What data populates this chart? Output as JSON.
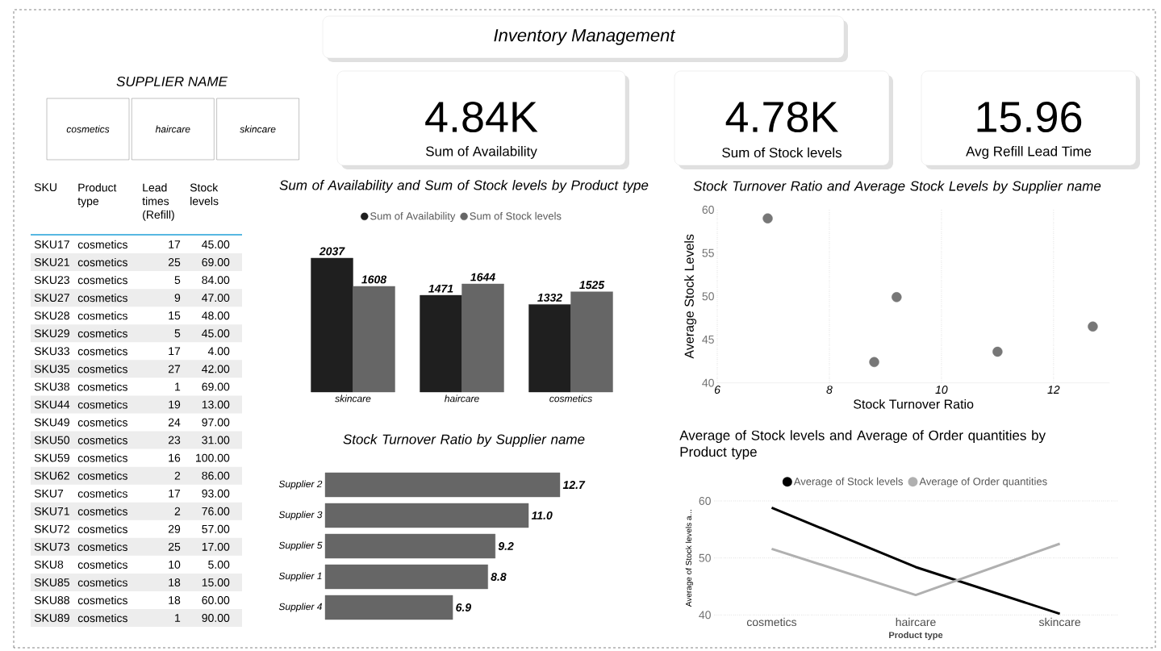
{
  "chart_data": [
    {
      "type": "other",
      "title": "Inventory Management"
    },
    {
      "type": "other",
      "title": "SUPPLIER NAME",
      "categories": [
        "cosmetics",
        "haircare",
        "skincare"
      ]
    },
    {
      "type": "other",
      "categories": [
        "Sum of Availability",
        "Sum of Stock levels",
        "Avg Refill Lead Time"
      ],
      "value_labels": [
        "4.84K",
        "4.78K",
        "15.96"
      ]
    },
    {
      "type": "other",
      "categories": [
        "SKU",
        "Product type",
        "Lead times (Refill)",
        "Stock levels"
      ],
      "cell_labels": [
        [
          "SKU17",
          "cosmetics",
          "17",
          "45.00"
        ],
        [
          "SKU21",
          "cosmetics",
          "25",
          "69.00"
        ],
        [
          "SKU23",
          "cosmetics",
          "5",
          "84.00"
        ],
        [
          "SKU27",
          "cosmetics",
          "9",
          "47.00"
        ],
        [
          "SKU28",
          "cosmetics",
          "15",
          "48.00"
        ],
        [
          "SKU29",
          "cosmetics",
          "5",
          "45.00"
        ],
        [
          "SKU33",
          "cosmetics",
          "17",
          "4.00"
        ],
        [
          "SKU35",
          "cosmetics",
          "27",
          "42.00"
        ],
        [
          "SKU38",
          "cosmetics",
          "1",
          "69.00"
        ],
        [
          "SKU44",
          "cosmetics",
          "19",
          "13.00"
        ],
        [
          "SKU49",
          "cosmetics",
          "24",
          "97.00"
        ],
        [
          "SKU50",
          "cosmetics",
          "23",
          "31.00"
        ],
        [
          "SKU59",
          "cosmetics",
          "16",
          "100.00"
        ],
        [
          "SKU62",
          "cosmetics",
          "2",
          "86.00"
        ],
        [
          "SKU7",
          "cosmetics",
          "17",
          "93.00"
        ],
        [
          "SKU71",
          "cosmetics",
          "2",
          "76.00"
        ],
        [
          "SKU72",
          "cosmetics",
          "29",
          "57.00"
        ],
        [
          "SKU73",
          "cosmetics",
          "25",
          "17.00"
        ],
        [
          "SKU8",
          "cosmetics",
          "10",
          "5.00"
        ],
        [
          "SKU85",
          "cosmetics",
          "18",
          "15.00"
        ],
        [
          "SKU88",
          "cosmetics",
          "18",
          "60.00"
        ],
        [
          "SKU89",
          "cosmetics",
          "1",
          "90.00"
        ]
      ]
    },
    {
      "type": "bar",
      "title": "Sum of Availability and Sum of Stock levels by Product type",
      "categories": [
        "skincare",
        "haircare",
        "cosmetics"
      ],
      "series": [
        {
          "name": "Sum of Availability",
          "color": "#1f1f1f",
          "values": [
            2037,
            1471,
            1332
          ]
        },
        {
          "name": "Sum of Stock levels",
          "color": "#666666",
          "values": [
            1608,
            1644,
            1525
          ]
        }
      ],
      "data_labels": true,
      "legend": "top"
    },
    {
      "type": "scatter",
      "title": "Stock Turnover Ratio and Average Stock Levels by Supplier name",
      "xlabel": "Stock Turnover Ratio",
      "ylabel": "Average Stock Levels",
      "x": [
        6.9,
        8.8,
        9.2,
        11.0,
        12.7
      ],
      "values": [
        59.0,
        42.4,
        49.9,
        43.6,
        46.5
      ],
      "color": "#777777",
      "marker": "circle",
      "xlim": [
        6,
        13
      ],
      "xticks": [
        6,
        8,
        10,
        12
      ],
      "ylim": [
        40,
        60
      ],
      "yticks": [
        40,
        45,
        50,
        55,
        60
      ],
      "grid": "x"
    },
    {
      "type": "bar",
      "orientation": "horizontal",
      "title": "Stock Turnover Ratio by Supplier name",
      "categories": [
        "Supplier 2",
        "Supplier 3",
        "Supplier 5",
        "Supplier 1",
        "Supplier 4"
      ],
      "values": [
        12.7,
        11.0,
        9.2,
        8.8,
        6.9
      ],
      "value_labels": [
        "12.7",
        "11.0",
        "9.2",
        "8.8",
        "6.9"
      ],
      "color": "#666666"
    },
    {
      "type": "line",
      "title": "Average of Stock levels and Average of Order quantities by Product type",
      "xlabel": "Product type",
      "ylabel": "Average of Stock levels a...",
      "categories": [
        "cosmetics",
        "haircare",
        "skincare"
      ],
      "series": [
        {
          "name": "Average of Stock levels",
          "color": "#000000",
          "values": [
            58.8,
            48.4,
            40.2
          ]
        },
        {
          "name": "Average of Order quantities",
          "color": "#b0b0b0",
          "values": [
            51.6,
            43.5,
            52.5
          ]
        }
      ],
      "ylim": [
        40,
        60
      ],
      "yticks": [
        40,
        50,
        60
      ],
      "grid": "y",
      "legend": "top"
    }
  ]
}
